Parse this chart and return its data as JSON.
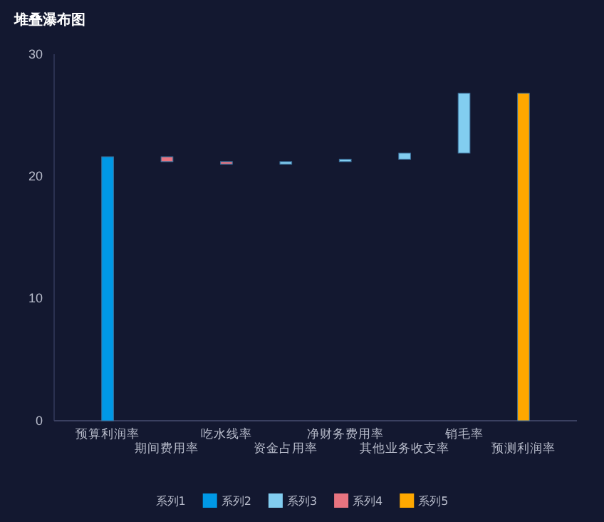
{
  "chart_data": {
    "type": "bar",
    "title": "堆叠瀑布图",
    "categories": [
      "预算利润率",
      "期间费用率",
      "吃水线率",
      "资金占用率",
      "净财务费用率",
      "其他业务收支率",
      "销毛率",
      "预测利润率"
    ],
    "series": [
      {
        "name": "系列1",
        "color": null,
        "values": [
          null,
          null,
          null,
          null,
          null,
          null,
          null,
          null
        ]
      },
      {
        "name": "系列2",
        "color": "#0098e5",
        "values": [
          21.6,
          null,
          null,
          null,
          null,
          null,
          null,
          null
        ]
      },
      {
        "name": "系列3",
        "color": "#82cdf0",
        "values": [
          null,
          null,
          null,
          0.2,
          0.2,
          0.5,
          4.9,
          null
        ],
        "base": [
          null,
          null,
          null,
          21.0,
          21.2,
          21.4,
          21.9,
          null
        ]
      },
      {
        "name": "系列4",
        "color": "#e87480",
        "values": [
          null,
          0.4,
          0.2,
          null,
          null,
          null,
          null,
          null
        ],
        "base": [
          null,
          21.2,
          21.0,
          null,
          null,
          null,
          null,
          null
        ]
      },
      {
        "name": "系列5",
        "color": "#ffa800",
        "values": [
          null,
          null,
          null,
          null,
          null,
          null,
          null,
          26.8
        ]
      }
    ],
    "ylim": [
      0,
      30
    ],
    "yticks": [
      0,
      10,
      20,
      30
    ],
    "legend": "bottom"
  }
}
